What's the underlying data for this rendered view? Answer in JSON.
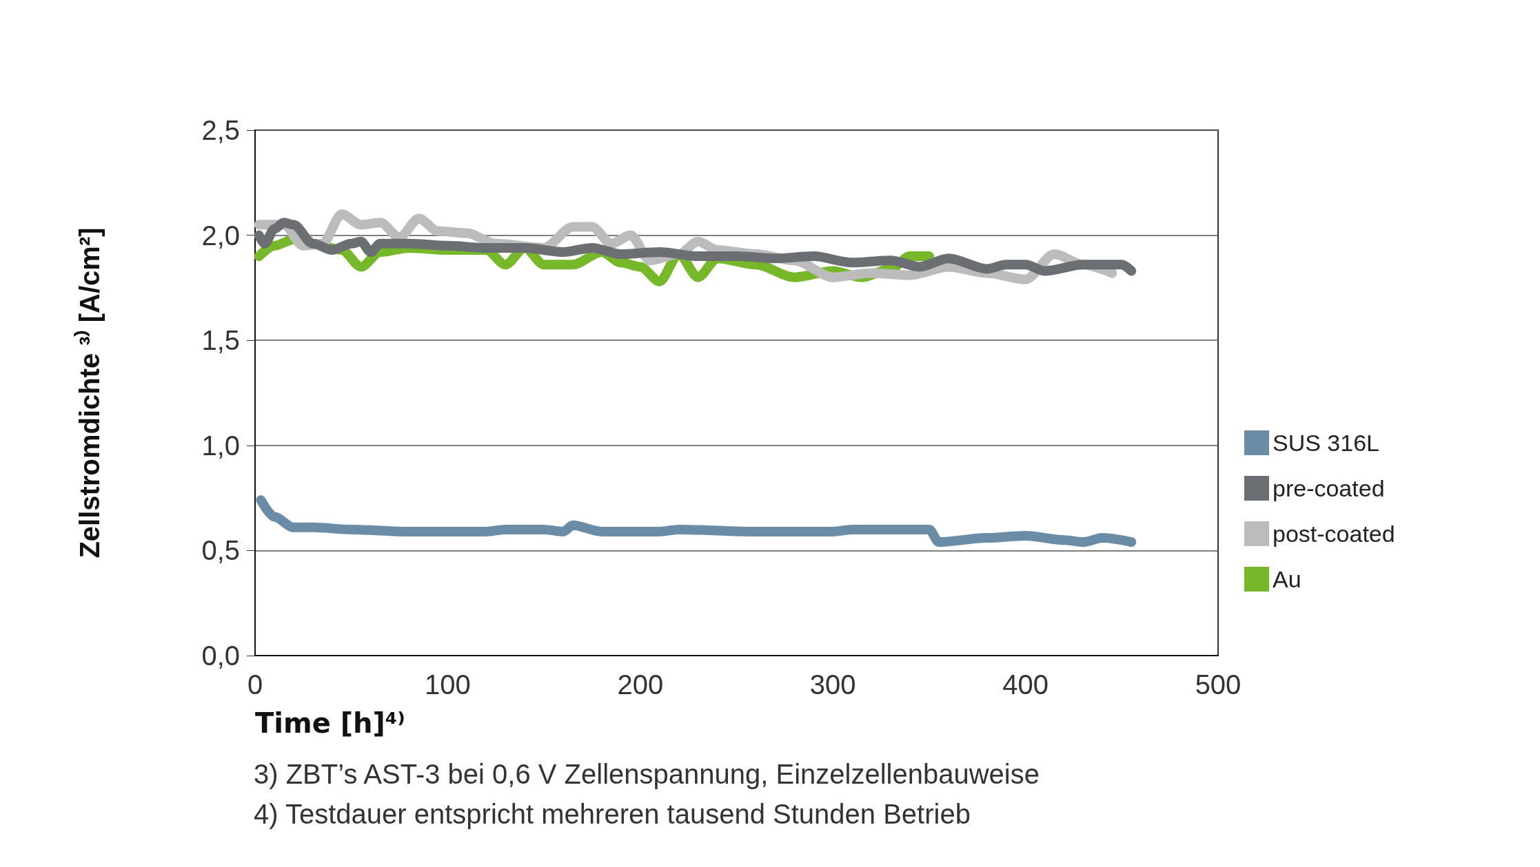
{
  "chart_data": {
    "type": "line",
    "xlabel": "Time [h]⁴⁾",
    "ylabel": "Zellstromdichte ³⁾ [A/cm²]",
    "annotations": [
      "3) ZBT’s AST-3 bei 0,6 V Zellenspannung, Einzelzellenbauweise",
      "4) Testdauer entspricht mehreren tausend Stunden Betrieb"
    ],
    "xlim": [
      0,
      500
    ],
    "xticks": [
      0,
      100,
      200,
      300,
      400,
      500
    ],
    "ylim": [
      0,
      2.5
    ],
    "yticks": [
      {
        "value": 0,
        "label": "0,0"
      },
      {
        "value": 0.5,
        "label": "0,5"
      },
      {
        "value": 1,
        "label": "1,0"
      },
      {
        "value": 1.5,
        "label": "1,5"
      },
      {
        "value": 2,
        "label": "2,0"
      },
      {
        "value": 2.5,
        "label": "2,5"
      }
    ],
    "grid": "y",
    "legend": "right",
    "line_style": "solid",
    "series": [
      {
        "name": "SUS 316L",
        "color": "#6a8ca6",
        "x": [
          3,
          10,
          20,
          30,
          50,
          80,
          120,
          130,
          150,
          160,
          165,
          180,
          210,
          220,
          260,
          270,
          300,
          310,
          350,
          355,
          380,
          400,
          420,
          430,
          440,
          455
        ],
        "values": [
          0.74,
          0.66,
          0.61,
          0.61,
          0.6,
          0.59,
          0.59,
          0.6,
          0.6,
          0.59,
          0.62,
          0.59,
          0.59,
          0.6,
          0.59,
          0.59,
          0.59,
          0.6,
          0.6,
          0.54,
          0.56,
          0.57,
          0.55,
          0.54,
          0.56,
          0.54
        ]
      },
      {
        "name": "pre-coated",
        "color": "#6b6e72",
        "x": [
          2,
          5,
          10,
          15,
          20,
          30,
          40,
          50,
          55,
          60,
          65,
          80,
          100,
          120,
          140,
          160,
          175,
          190,
          210,
          230,
          250,
          270,
          290,
          310,
          330,
          345,
          360,
          380,
          390,
          400,
          410,
          430,
          450,
          455
        ],
        "values": [
          2.0,
          1.96,
          2.03,
          2.06,
          2.05,
          1.96,
          1.93,
          1.96,
          1.97,
          1.92,
          1.96,
          1.96,
          1.95,
          1.94,
          1.94,
          1.92,
          1.94,
          1.91,
          1.92,
          1.9,
          1.9,
          1.89,
          1.9,
          1.87,
          1.88,
          1.85,
          1.89,
          1.84,
          1.86,
          1.86,
          1.83,
          1.86,
          1.86,
          1.83
        ]
      },
      {
        "name": "post-coated",
        "color": "#bcbcbc",
        "x": [
          2,
          15,
          25,
          35,
          45,
          55,
          65,
          75,
          85,
          95,
          110,
          125,
          150,
          165,
          175,
          185,
          195,
          205,
          220,
          230,
          240,
          260,
          280,
          300,
          320,
          340,
          360,
          380,
          400,
          415,
          430,
          445
        ],
        "values": [
          2.05,
          2.05,
          1.95,
          1.96,
          2.1,
          2.05,
          2.06,
          1.99,
          2.08,
          2.02,
          2.01,
          1.96,
          1.94,
          2.04,
          2.04,
          1.96,
          2.0,
          1.88,
          1.91,
          1.97,
          1.93,
          1.91,
          1.88,
          1.8,
          1.82,
          1.81,
          1.85,
          1.82,
          1.79,
          1.91,
          1.86,
          1.82
        ]
      },
      {
        "name": "Au",
        "color": "#77b82a",
        "x": [
          2,
          10,
          20,
          30,
          45,
          55,
          65,
          80,
          100,
          120,
          130,
          140,
          150,
          165,
          180,
          190,
          200,
          210,
          220,
          230,
          240,
          260,
          280,
          300,
          315,
          330,
          340,
          350
        ],
        "values": [
          1.9,
          1.95,
          1.98,
          1.96,
          1.93,
          1.85,
          1.92,
          1.94,
          1.93,
          1.93,
          1.86,
          1.94,
          1.86,
          1.86,
          1.92,
          1.87,
          1.85,
          1.78,
          1.91,
          1.8,
          1.89,
          1.86,
          1.8,
          1.83,
          1.8,
          1.84,
          1.9,
          1.9
        ]
      }
    ]
  }
}
